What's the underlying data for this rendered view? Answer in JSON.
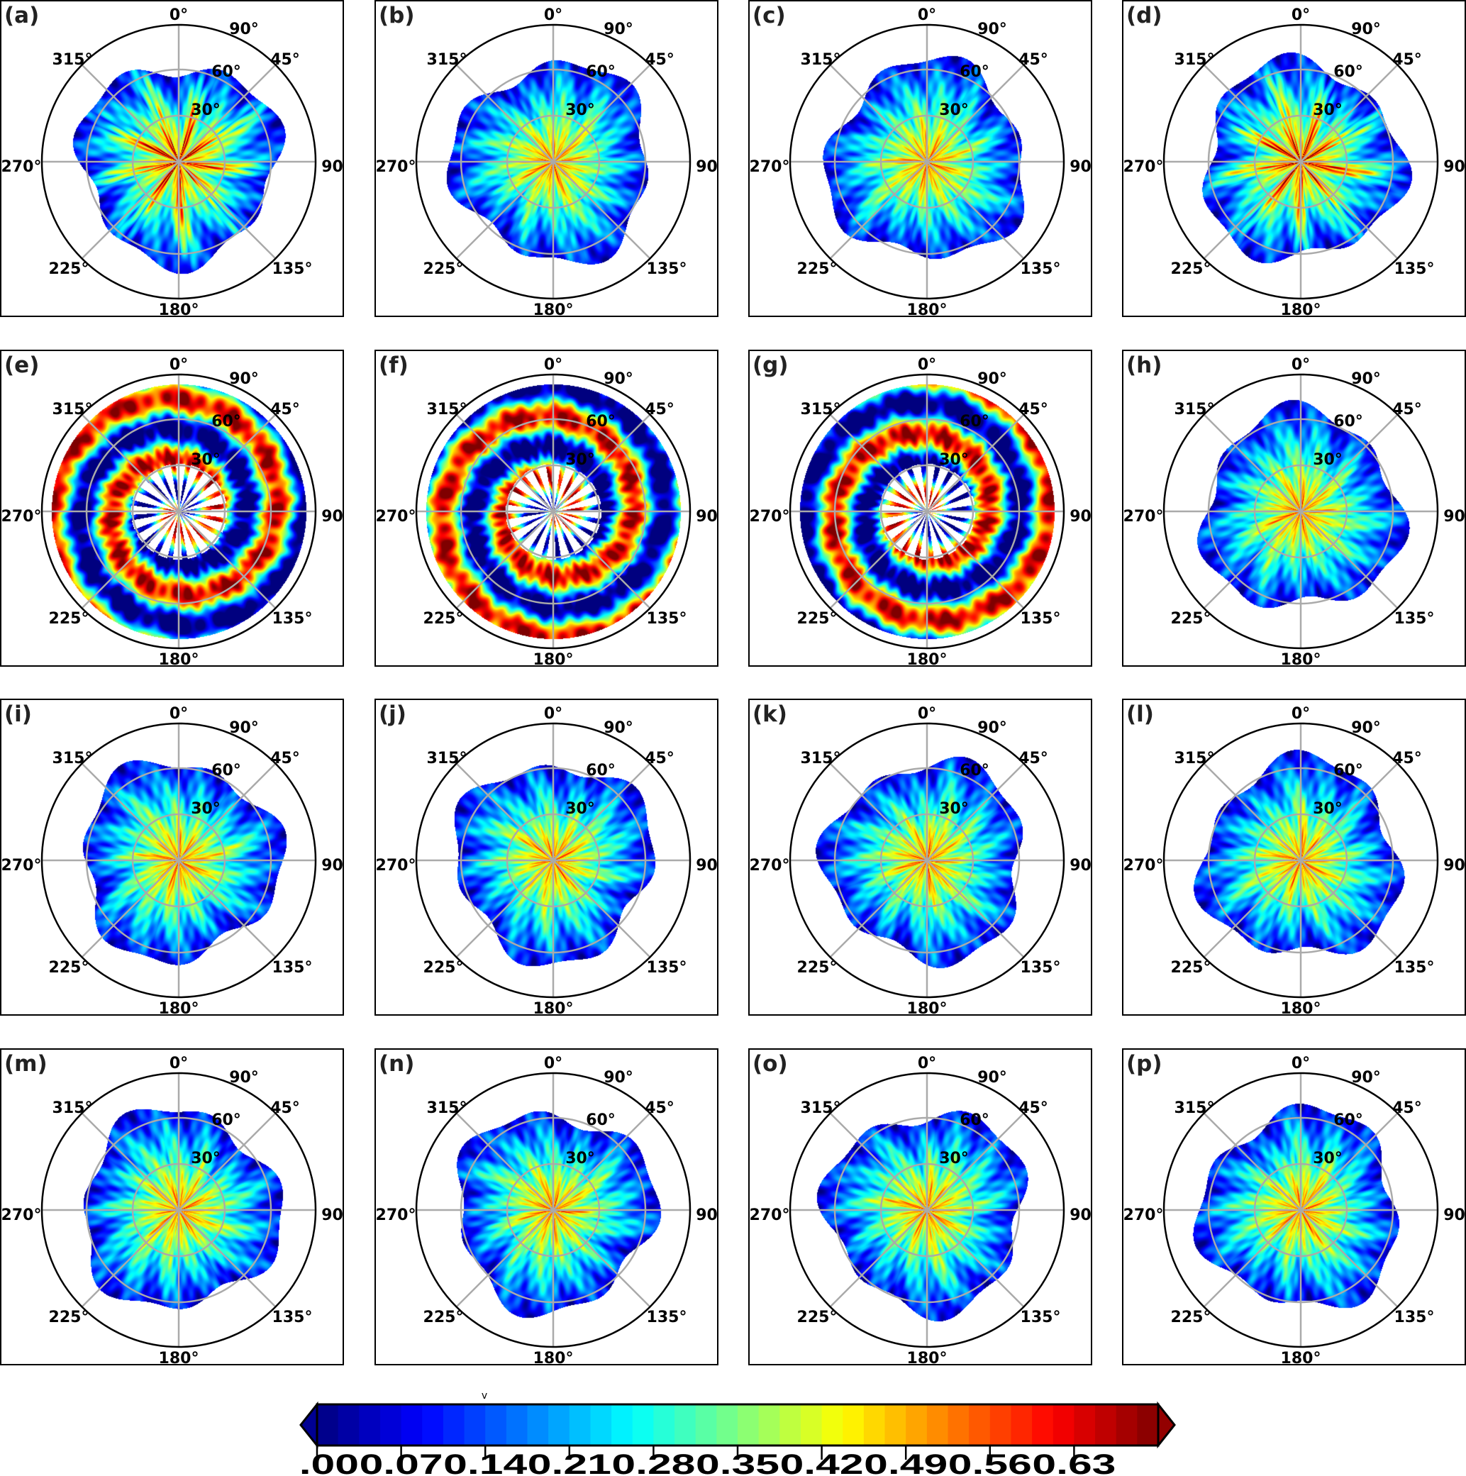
{
  "chart_data": {
    "type": "heatmap",
    "projection": "polar",
    "panels": [
      {
        "label": "(a)"
      },
      {
        "label": "(b)"
      },
      {
        "label": "(c)"
      },
      {
        "label": "(d)"
      },
      {
        "label": "(e)"
      },
      {
        "label": "(f)"
      },
      {
        "label": "(g)"
      },
      {
        "label": "(h)"
      },
      {
        "label": "(i)"
      },
      {
        "label": "(j)"
      },
      {
        "label": "(k)"
      },
      {
        "label": "(l)"
      },
      {
        "label": "(m)"
      },
      {
        "label": "(n)"
      },
      {
        "label": "(o)"
      },
      {
        "label": "(p)"
      }
    ],
    "azimuth_ticks": [
      "0°",
      "45°",
      "90°",
      "135°",
      "180°",
      "225°",
      "270°",
      "315°"
    ],
    "zenith_ticks": [
      "30°",
      "60°",
      "90°"
    ],
    "grid": true,
    "colormap": "jet",
    "colorbar": {
      "ticks": [
        "0.00",
        "0.07",
        "0.14",
        "0.21",
        "0.28",
        "0.35",
        "0.42",
        "0.49",
        "0.56",
        "0.63"
      ],
      "range": [
        0,
        0.7
      ],
      "extend": "both",
      "marker": "v",
      "position": "bottom"
    }
  }
}
